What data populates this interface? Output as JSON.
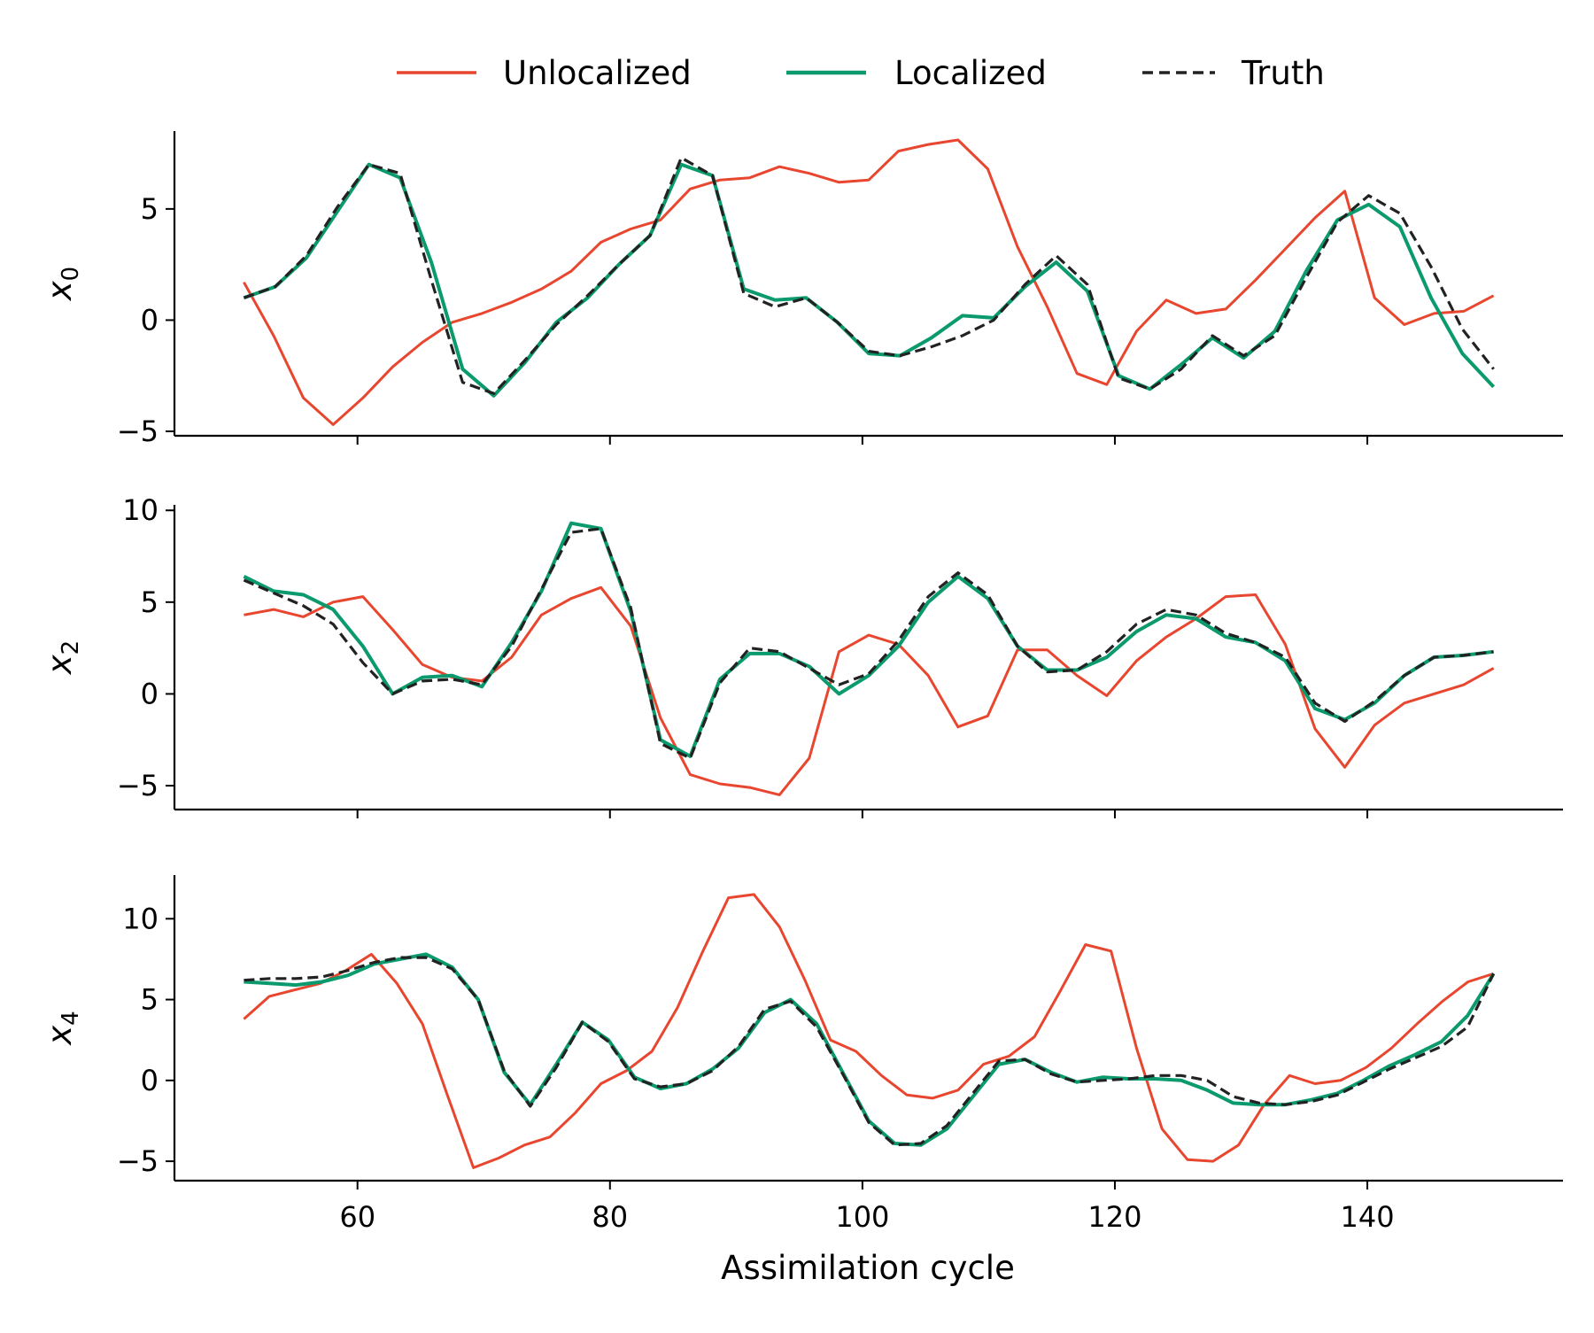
{
  "chart_data": {
    "type": "line",
    "xlabel": "Assimilation cycle",
    "legend": {
      "placement": "top-center",
      "entries": [
        {
          "key": "unlocalized",
          "label": "Unlocalized"
        },
        {
          "key": "localized",
          "label": "Localized"
        },
        {
          "key": "truth",
          "label": "Truth"
        }
      ]
    },
    "styles": {
      "unlocalized": {
        "color": "#e8462f",
        "dash": "solid"
      },
      "localized": {
        "color": "#0a9a6e",
        "dash": "solid"
      },
      "truth": {
        "color": "#222222",
        "dash": "dashed"
      }
    },
    "x_ticks": [
      60,
      80,
      100,
      120,
      140
    ],
    "xlim": [
      45.5,
      155.5
    ],
    "x_start": 51,
    "x_step": 2,
    "panels": [
      {
        "ylabel": "x",
        "ylabel_sub": "0",
        "ylim": [
          -5.2,
          8.5
        ],
        "y_ticks": [
          -5,
          0,
          5
        ],
        "series": {
          "unlocalized": [
            1.7,
            -0.7,
            -3.5,
            -4.7,
            -3.5,
            -2.1,
            -1.0,
            -0.1,
            0.3,
            0.8,
            1.4,
            2.2,
            3.5,
            4.1,
            4.5,
            5.9,
            6.3,
            6.4,
            6.9,
            6.6,
            6.2,
            6.3,
            7.6,
            7.9,
            8.1,
            6.8,
            3.3,
            0.6,
            -2.4,
            -2.9,
            -0.5,
            0.9,
            0.3,
            0.5,
            1.8,
            3.2,
            4.6,
            5.8,
            1.0,
            -0.2,
            0.3,
            0.4,
            1.1
          ],
          "localized": [
            1.0,
            1.5,
            2.8,
            4.9,
            7.0,
            6.4,
            2.6,
            -2.2,
            -3.4,
            -1.9,
            -0.1,
            1.0,
            2.5,
            3.8,
            7.0,
            6.5,
            1.4,
            0.9,
            1.0,
            -0.1,
            -1.5,
            -1.6,
            -0.8,
            0.2,
            0.1,
            1.5,
            2.6,
            1.3,
            -2.5,
            -3.1,
            -2.0,
            -0.8,
            -1.7,
            -0.5,
            2.2,
            4.5,
            5.2,
            4.2,
            1.0,
            -1.5,
            -3.0
          ],
          "truth": [
            1.0,
            1.5,
            2.9,
            5.1,
            7.0,
            6.6,
            1.8,
            -2.8,
            -3.3,
            -1.8,
            -0.2,
            1.1,
            2.5,
            3.8,
            7.3,
            6.5,
            1.2,
            0.6,
            1.0,
            -0.1,
            -1.4,
            -1.6,
            -1.2,
            -0.7,
            0.0,
            1.6,
            2.9,
            1.6,
            -2.6,
            -3.1,
            -2.2,
            -0.7,
            -1.6,
            -0.7,
            1.9,
            4.4,
            5.6,
            4.8,
            2.4,
            -0.4,
            -2.2
          ]
        }
      },
      {
        "ylabel": "x",
        "ylabel_sub": "2",
        "ylim": [
          -6.3,
          10.3
        ],
        "y_ticks": [
          -5,
          0,
          5,
          10
        ],
        "series": {
          "unlocalized": [
            4.3,
            4.6,
            4.2,
            5.0,
            5.3,
            3.5,
            1.6,
            0.9,
            0.7,
            2.0,
            4.3,
            5.2,
            5.8,
            3.7,
            -1.3,
            -4.4,
            -4.9,
            -5.1,
            -5.5,
            -3.5,
            2.3,
            3.2,
            2.7,
            1.0,
            -1.8,
            -1.2,
            2.4,
            2.4,
            1.0,
            -0.1,
            1.8,
            3.1,
            4.1,
            5.3,
            5.4,
            2.7,
            -1.9,
            -4.0,
            -1.7,
            -0.5,
            0.0,
            0.5,
            1.4
          ],
          "localized": [
            6.4,
            5.6,
            5.4,
            4.6,
            2.6,
            0.0,
            0.9,
            1.0,
            0.4,
            2.8,
            5.6,
            9.3,
            9.0,
            4.5,
            -2.5,
            -3.4,
            0.8,
            2.2,
            2.2,
            1.5,
            0.0,
            1.0,
            2.6,
            5.0,
            6.4,
            5.2,
            2.6,
            1.3,
            1.3,
            2.0,
            3.4,
            4.3,
            4.1,
            3.1,
            2.8,
            1.8,
            -0.8,
            -1.4,
            -0.5,
            1.0,
            2.0,
            2.1,
            2.3
          ],
          "truth": [
            6.2,
            5.5,
            4.8,
            3.8,
            1.7,
            0.0,
            0.7,
            0.8,
            0.5,
            2.6,
            5.7,
            8.8,
            9.0,
            4.7,
            -2.7,
            -3.5,
            0.6,
            2.5,
            2.3,
            1.4,
            0.5,
            1.1,
            2.9,
            5.3,
            6.6,
            5.4,
            2.6,
            1.2,
            1.3,
            2.3,
            3.8,
            4.6,
            4.3,
            3.3,
            2.8,
            2.0,
            -0.5,
            -1.5,
            -0.4,
            1.0,
            2.0,
            2.1,
            2.3
          ]
        }
      },
      {
        "ylabel": "x",
        "ylabel_sub": "4",
        "ylim": [
          -6.2,
          12.7
        ],
        "y_ticks": [
          -5,
          0,
          5,
          10
        ],
        "series": {
          "unlocalized": [
            3.8,
            5.2,
            5.6,
            6.0,
            6.8,
            7.8,
            6.0,
            3.5,
            -1.0,
            -5.4,
            -4.8,
            -4.0,
            -3.5,
            -2.0,
            -0.2,
            0.6,
            1.8,
            4.5,
            8.0,
            11.3,
            11.5,
            9.5,
            6.2,
            2.5,
            1.8,
            0.3,
            -0.9,
            -1.1,
            -0.6,
            1.0,
            1.5,
            2.7,
            5.5,
            8.4,
            8.0,
            2.0,
            -3.0,
            -4.9,
            -5.0,
            -4.0,
            -1.5,
            0.3,
            -0.2,
            0.0,
            0.8,
            2.0,
            3.5,
            4.9,
            6.1,
            6.6
          ],
          "localized": [
            6.1,
            6.0,
            5.9,
            6.1,
            6.5,
            7.2,
            7.5,
            7.8,
            7.0,
            5.0,
            0.5,
            -1.5,
            1.0,
            3.6,
            2.5,
            0.2,
            -0.5,
            -0.2,
            0.7,
            2.0,
            4.2,
            5.0,
            3.5,
            0.5,
            -2.5,
            -3.9,
            -4.0,
            -3.0,
            -1.0,
            1.0,
            1.3,
            0.5,
            -0.1,
            0.2,
            0.1,
            0.1,
            0.0,
            -0.6,
            -1.4,
            -1.5,
            -1.5,
            -1.2,
            -0.8,
            0.0,
            0.9,
            1.6,
            2.4,
            4.0,
            6.6
          ],
          "truth": [
            6.2,
            6.3,
            6.3,
            6.4,
            6.8,
            7.3,
            7.6,
            7.6,
            6.9,
            5.0,
            0.6,
            -1.6,
            0.8,
            3.6,
            2.4,
            0.1,
            -0.4,
            -0.2,
            0.6,
            2.1,
            4.4,
            4.9,
            3.3,
            0.4,
            -2.6,
            -4.0,
            -3.9,
            -2.8,
            -0.8,
            1.2,
            1.3,
            0.4,
            -0.1,
            0.0,
            0.1,
            0.3,
            0.3,
            0.0,
            -1.0,
            -1.4,
            -1.5,
            -1.3,
            -0.9,
            -0.1,
            0.7,
            1.4,
            2.1,
            3.3,
            6.6
          ]
        }
      }
    ]
  }
}
